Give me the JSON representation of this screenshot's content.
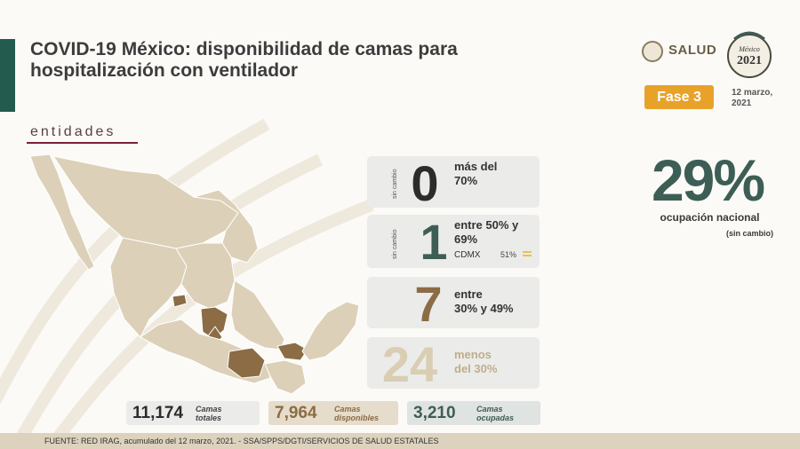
{
  "title": "COVID-19 México: disponibilidad de camas para hospitalización con ventilador",
  "section": "entidades",
  "logos": {
    "salud": "SALUD",
    "year": "2021",
    "year_caption": "México"
  },
  "fase": "Fase 3",
  "date_line1": "12 marzo,",
  "date_line2": "2021",
  "national": {
    "value": "29%",
    "label": "ocupación nacional",
    "sub": "(sin cambio)"
  },
  "cards": [
    {
      "tag": "sin cambio",
      "number": "0",
      "label1": "más del",
      "label2": "70%",
      "color": "#2c2c2c"
    },
    {
      "tag": "sin cambio",
      "number": "1",
      "label1": "entre 50% y",
      "label2": "69%",
      "color": "#3d5e55",
      "note_name": "CDMX",
      "note_value": "51%"
    },
    {
      "tag": "",
      "number": "7",
      "label1": "entre",
      "label2": "30% y 49%",
      "color": "#8b6c45"
    },
    {
      "tag": "",
      "number": "24",
      "label1": "menos",
      "label2": "del 30%",
      "color": "#d9cdb2",
      "label_color": "#bfae8a"
    }
  ],
  "stats": [
    {
      "value": "11,174",
      "label1": "Camas",
      "label2": "totales",
      "bg": "#ebebea",
      "color": "#2c2c2c"
    },
    {
      "value": "7,964",
      "label1": "Camas",
      "label2": "disponibles",
      "bg": "#e6dccb",
      "color": "#8b6c45"
    },
    {
      "value": "3,210",
      "label1": "Camas",
      "label2": "ocupadas",
      "bg": "#dfe3e1",
      "color": "#3d5e55"
    }
  ],
  "footer": "FUENTE: RED IRAG, acumulado del 12 marzo, 2021.  -  SSA/SPPS/DGTI/SERVICIOS DE SALUD ESTATALES",
  "colors": {
    "green": "#235b4e",
    "gold": "#e8a22a",
    "brown": "#8b6c45",
    "beige": "#d9cdb2"
  }
}
